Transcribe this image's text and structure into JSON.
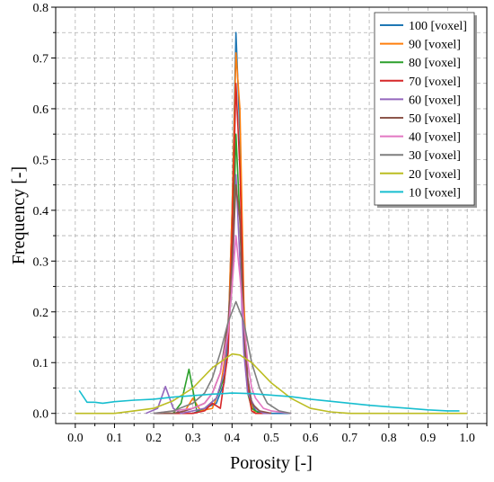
{
  "chart_data": {
    "type": "line",
    "title": "",
    "xlabel": "Porosity [-]",
    "ylabel": "Frequency [-]",
    "xlim": [
      -0.05,
      1.05
    ],
    "ylim": [
      -0.02,
      0.8
    ],
    "xticks": [
      0.0,
      0.1,
      0.2,
      0.3,
      0.4,
      0.5,
      0.6,
      0.7,
      0.8,
      0.9,
      1.0
    ],
    "xtick_labels": [
      "0.0",
      "0.1",
      "0.2",
      "0.3",
      "0.4",
      "0.5",
      "0.6",
      "0.7",
      "0.8",
      "0.9",
      "1.0"
    ],
    "yticks": [
      0.0,
      0.1,
      0.2,
      0.3,
      0.4,
      0.5,
      0.6,
      0.7,
      0.8
    ],
    "ytick_labels": [
      "0.0",
      "0.1",
      "0.2",
      "0.3",
      "0.4",
      "0.5",
      "0.6",
      "0.7",
      "0.8"
    ],
    "grid": true,
    "legend_position": "top-right",
    "series": [
      {
        "name": "100 [voxel]",
        "color": "#1f77b4",
        "x": [
          0.25,
          0.3,
          0.33,
          0.36,
          0.38,
          0.39,
          0.4,
          0.41,
          0.42,
          0.43,
          0.44,
          0.45,
          0.46,
          0.48,
          0.5,
          0.55
        ],
        "y": [
          0.0,
          0.0,
          0.01,
          0.02,
          0.06,
          0.15,
          0.4,
          0.75,
          0.55,
          0.2,
          0.07,
          0.02,
          0.005,
          0.0,
          0.0,
          0.0
        ]
      },
      {
        "name": "90 [voxel]",
        "color": "#ff7f0e",
        "x": [
          0.22,
          0.26,
          0.28,
          0.3,
          0.32,
          0.35,
          0.37,
          0.39,
          0.4,
          0.41,
          0.42,
          0.43,
          0.44,
          0.45,
          0.46,
          0.48,
          0.5
        ],
        "y": [
          0.0,
          0.0,
          0.005,
          0.03,
          0.005,
          0.01,
          0.05,
          0.15,
          0.4,
          0.71,
          0.6,
          0.22,
          0.06,
          0.015,
          0.0,
          0.0,
          0.0
        ]
      },
      {
        "name": "80 [voxel]",
        "color": "#2ca02c",
        "x": [
          0.22,
          0.25,
          0.27,
          0.29,
          0.31,
          0.33,
          0.36,
          0.38,
          0.4,
          0.41,
          0.42,
          0.43,
          0.44,
          0.45,
          0.47,
          0.5
        ],
        "y": [
          0.0,
          0.0,
          0.02,
          0.087,
          0.005,
          0.01,
          0.03,
          0.07,
          0.25,
          0.55,
          0.38,
          0.14,
          0.04,
          0.01,
          0.0,
          0.0
        ]
      },
      {
        "name": "70 [voxel]",
        "color": "#d62728",
        "x": [
          0.25,
          0.3,
          0.33,
          0.35,
          0.37,
          0.39,
          0.4,
          0.41,
          0.42,
          0.43,
          0.44,
          0.45,
          0.46,
          0.48,
          0.5
        ],
        "y": [
          0.0,
          0.0,
          0.005,
          0.02,
          0.01,
          0.12,
          0.35,
          0.65,
          0.48,
          0.18,
          0.05,
          0.005,
          0.0,
          0.0,
          0.0
        ]
      },
      {
        "name": "60 [voxel]",
        "color": "#9467bd",
        "x": [
          0.18,
          0.21,
          0.23,
          0.25,
          0.27,
          0.3,
          0.33,
          0.36,
          0.38,
          0.4,
          0.41,
          0.42,
          0.43,
          0.44,
          0.46,
          0.48,
          0.5
        ],
        "y": [
          0.0,
          0.01,
          0.053,
          0.01,
          0.0,
          0.005,
          0.01,
          0.03,
          0.08,
          0.25,
          0.47,
          0.3,
          0.12,
          0.04,
          0.01,
          0.0,
          0.0
        ]
      },
      {
        "name": "50 [voxel]",
        "color": "#8c564b",
        "x": [
          0.2,
          0.25,
          0.28,
          0.3,
          0.33,
          0.35,
          0.37,
          0.39,
          0.4,
          0.41,
          0.42,
          0.43,
          0.44,
          0.45,
          0.47,
          0.5
        ],
        "y": [
          0.0,
          0.0,
          0.005,
          0.01,
          0.02,
          0.04,
          0.08,
          0.18,
          0.3,
          0.45,
          0.38,
          0.18,
          0.07,
          0.02,
          0.005,
          0.0
        ]
      },
      {
        "name": "40 [voxel]",
        "color": "#e377c2",
        "x": [
          0.2,
          0.25,
          0.3,
          0.33,
          0.35,
          0.37,
          0.39,
          0.4,
          0.41,
          0.42,
          0.43,
          0.44,
          0.45,
          0.46,
          0.48,
          0.5,
          0.55
        ],
        "y": [
          0.0,
          0.005,
          0.01,
          0.02,
          0.04,
          0.08,
          0.16,
          0.25,
          0.35,
          0.27,
          0.18,
          0.1,
          0.05,
          0.03,
          0.01,
          0.005,
          0.0
        ]
      },
      {
        "name": "30 [voxel]",
        "color": "#7f7f7f",
        "x": [
          0.2,
          0.25,
          0.3,
          0.33,
          0.35,
          0.37,
          0.39,
          0.41,
          0.42,
          0.43,
          0.45,
          0.47,
          0.49,
          0.52,
          0.55
        ],
        "y": [
          0.0,
          0.005,
          0.02,
          0.04,
          0.07,
          0.12,
          0.18,
          0.22,
          0.2,
          0.18,
          0.1,
          0.05,
          0.02,
          0.005,
          0.0
        ]
      },
      {
        "name": "20 [voxel]",
        "color": "#bcbd22",
        "x": [
          0.0,
          0.1,
          0.15,
          0.2,
          0.25,
          0.3,
          0.35,
          0.4,
          0.42,
          0.45,
          0.5,
          0.55,
          0.6,
          0.65,
          0.7,
          0.8,
          1.0
        ],
        "y": [
          0.0,
          0.0,
          0.005,
          0.01,
          0.025,
          0.05,
          0.09,
          0.117,
          0.115,
          0.1,
          0.06,
          0.03,
          0.01,
          0.003,
          0.0,
          0.0,
          0.0
        ]
      },
      {
        "name": "10 [voxel]",
        "color": "#17becf",
        "x": [
          0.01,
          0.03,
          0.05,
          0.07,
          0.1,
          0.15,
          0.2,
          0.25,
          0.3,
          0.35,
          0.4,
          0.45,
          0.5,
          0.55,
          0.6,
          0.65,
          0.7,
          0.75,
          0.8,
          0.85,
          0.9,
          0.95,
          0.98
        ],
        "y": [
          0.045,
          0.022,
          0.022,
          0.02,
          0.023,
          0.026,
          0.028,
          0.032,
          0.035,
          0.038,
          0.04,
          0.039,
          0.036,
          0.033,
          0.028,
          0.024,
          0.02,
          0.016,
          0.013,
          0.01,
          0.007,
          0.005,
          0.005
        ]
      }
    ]
  }
}
